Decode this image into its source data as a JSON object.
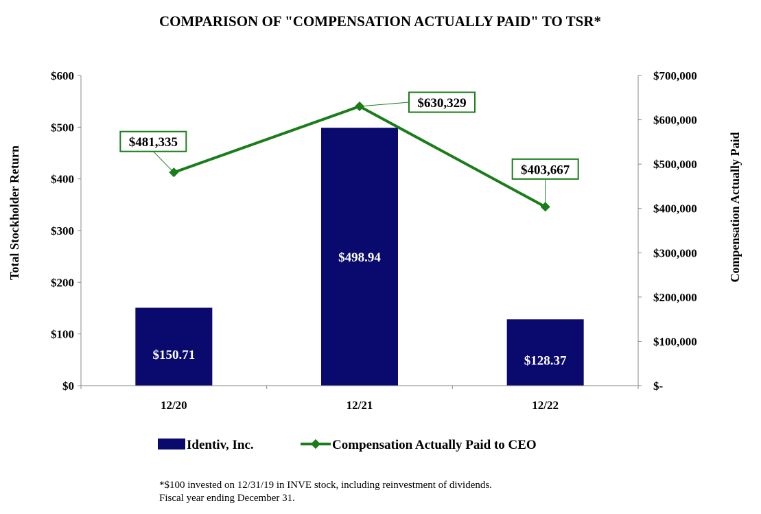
{
  "chart_data": {
    "type": "bar+line",
    "title": "COMPARISON OF \"COMPENSATION ACTUALLY PAID\" TO TSR*",
    "categories": [
      "12/20",
      "12/21",
      "12/22"
    ],
    "ylabel_left": "Total Stockholder Return",
    "ylabel_right": "Compensation Actually Paid",
    "ylim_left": [
      0,
      600
    ],
    "ylim_right": [
      0,
      700000
    ],
    "left_ticks": [
      {
        "value": 0,
        "label": "$0"
      },
      {
        "value": 100,
        "label": "$100"
      },
      {
        "value": 200,
        "label": "$200"
      },
      {
        "value": 300,
        "label": "$300"
      },
      {
        "value": 400,
        "label": "$400"
      },
      {
        "value": 500,
        "label": "$500"
      },
      {
        "value": 600,
        "label": "$600"
      }
    ],
    "right_ticks": [
      {
        "value": 0,
        "label": "$-"
      },
      {
        "value": 100000,
        "label": "$100,000"
      },
      {
        "value": 200000,
        "label": "$200,000"
      },
      {
        "value": 300000,
        "label": "$300,000"
      },
      {
        "value": 400000,
        "label": "$400,000"
      },
      {
        "value": 500000,
        "label": "$500,000"
      },
      {
        "value": 600000,
        "label": "$600,000"
      },
      {
        "value": 700000,
        "label": "$700,000"
      }
    ],
    "series": [
      {
        "name": "Identiv, Inc.",
        "type": "bar",
        "axis": "left",
        "color": "#0a0a6e",
        "values": [
          150.71,
          498.94,
          128.37
        ],
        "labels": [
          "$150.71",
          "$498.94",
          "$128.37"
        ]
      },
      {
        "name": "Compensation Actually Paid to CEO",
        "type": "line",
        "axis": "right",
        "color": "#1a7d1a",
        "values": [
          481335,
          630329,
          403667
        ],
        "labels": [
          "$481,335",
          "$630,329",
          "$403,667"
        ]
      }
    ],
    "legend_position": "bottom",
    "grid": false
  },
  "footnote": {
    "line1": "*$100 invested on 12/31/19 in INVE stock, including reinvestment of dividends.",
    "line2": "Fiscal year ending December 31."
  }
}
